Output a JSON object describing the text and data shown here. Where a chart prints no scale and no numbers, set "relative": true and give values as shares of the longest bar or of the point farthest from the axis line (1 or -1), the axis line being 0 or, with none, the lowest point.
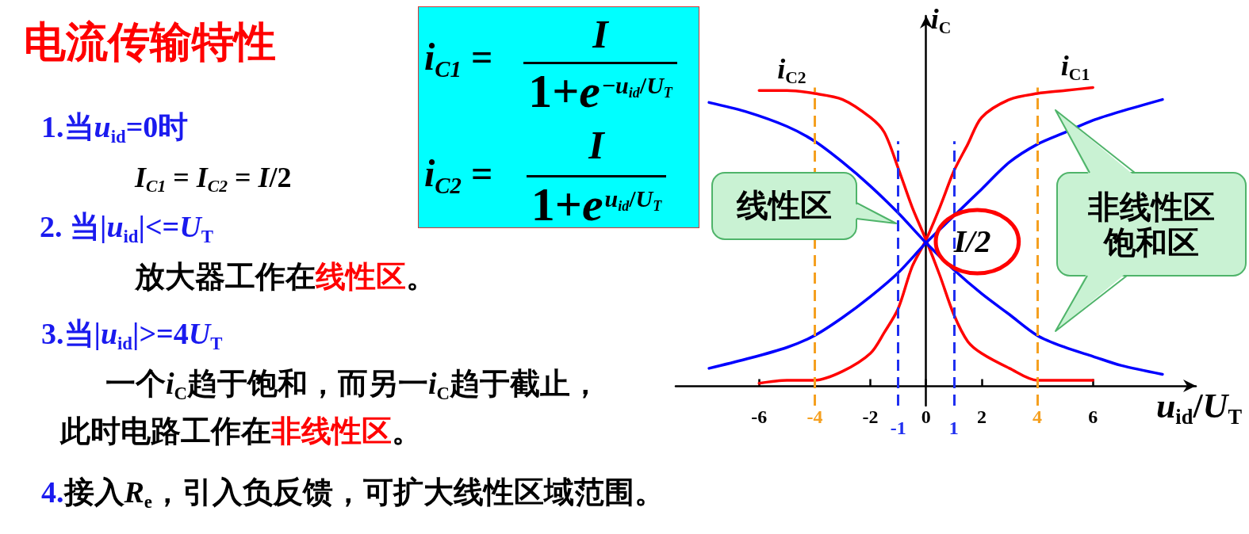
{
  "chart_data": {
    "type": "line",
    "title": "电流传输特性",
    "xlabel": "u$_{id}$/U$_{T}$",
    "ylabel": "i$_{C}$",
    "relative": true,
    "xlim": [
      -9,
      9.7
    ],
    "xticks": [
      -6,
      -2,
      0,
      2,
      6
    ],
    "tick_labels": "x",
    "series": [
      {
        "name": "i$_{C2}$",
        "color": "#ff0000",
        "x": [
          -6,
          -5,
          -4,
          -3,
          -2,
          -1.5,
          -1,
          -0.5,
          0,
          0.5,
          1,
          1.5,
          2,
          3,
          4,
          5,
          6
        ],
        "values": [
          0.99,
          0.99,
          0.98,
          0.96,
          0.9,
          0.85,
          0.73,
          0.6,
          0.49,
          0.37,
          0.24,
          0.15,
          0.11,
          0.06,
          0.02,
          0.02,
          0.02
        ]
      },
      {
        "name": "i$_{C1}$",
        "color": "#ff0000",
        "x": [
          -6,
          -5,
          -4,
          -3,
          -2,
          -1.5,
          -1,
          -0.5,
          0,
          0.5,
          1,
          1.5,
          2,
          3,
          4,
          5,
          6
        ],
        "values": [
          0.01,
          0.02,
          0.02,
          0.05,
          0.11,
          0.18,
          0.26,
          0.4,
          0.49,
          0.6,
          0.72,
          0.81,
          0.9,
          0.96,
          0.98,
          0.99,
          1.0
        ]
      },
      {
        "color": "#0000ff",
        "x": [
          -7.8,
          -6.5,
          -5,
          -4,
          -3,
          -2,
          -1,
          0,
          1,
          2,
          3,
          4,
          5,
          6,
          7,
          8.5
        ],
        "values": [
          0.06,
          0.09,
          0.13,
          0.17,
          0.23,
          0.3,
          0.38,
          0.48,
          0.57,
          0.66,
          0.75,
          0.81,
          0.85,
          0.89,
          0.92,
          0.96
        ]
      },
      {
        "color": "#0000ff",
        "x": [
          -7.8,
          -6.5,
          -5,
          -4,
          -3,
          -2,
          -1,
          0,
          1,
          2,
          3,
          4,
          5,
          6,
          7,
          8.5
        ],
        "values": [
          0.95,
          0.92,
          0.87,
          0.82,
          0.75,
          0.67,
          0.58,
          0.48,
          0.39,
          0.31,
          0.24,
          0.17,
          0.13,
          0.1,
          0.07,
          0.04
        ]
      }
    ],
    "ref_lines": [
      {
        "axis": "x",
        "value": -4,
        "label": "-4",
        "color": "#f5a020",
        "line_style": "dashed"
      },
      {
        "axis": "x",
        "value": -1,
        "label": "-1",
        "color": "#1f2ff0",
        "line_style": "dashed"
      },
      {
        "axis": "x",
        "value": 1,
        "label": "1",
        "color": "#1f2ff0",
        "line_style": "dashed"
      },
      {
        "axis": "x",
        "value": 4,
        "label": "4",
        "color": "#f5a020",
        "line_style": "dashed"
      }
    ],
    "annotations": [
      "1.当u$_{id}$=0时",
      "I$_{C1}$ = I$_{C2}$ = I/2",
      "2. 当|u$_{id}$|<=U$_{T}$",
      "放大器工作在",
      "线性区",
      "。",
      "3.当|u$_{id}$|>=4U$_{T}$",
      "一个i$_{C}$趋于饱和，而另一i$_{C}$趋于截止，",
      "此时电路工作在",
      "非线性区",
      "。",
      "4.",
      "接入R$_{e}$，引入负反馈，可扩大线性区域范围。",
      "i$_{C1}$ =",
      "I",
      "1+e",
      "−u$_{id}$/U$_{T}$",
      "i$_{C2}$ =",
      "I",
      "1+e",
      "u$_{id}$/U$_{T}$",
      "线性区",
      "非线性区",
      "饱和区",
      {
        "text": "I/2",
        "x": 0,
        "y": 0.49
      }
    ]
  }
}
